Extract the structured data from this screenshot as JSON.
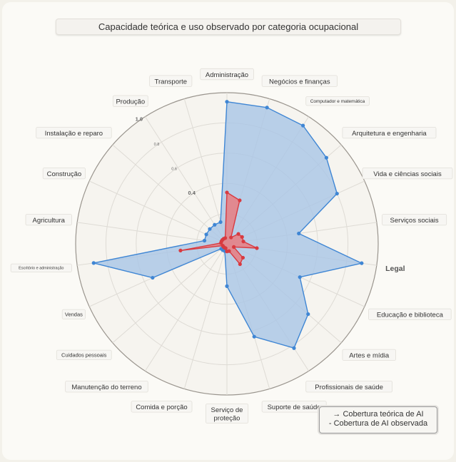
{
  "title": "Capacidade teórica e uso observado por categoria ocupacional",
  "legend": {
    "theoretical": "→ Cobertura teórica de AI",
    "observed": "- Cobertura de AI observada"
  },
  "colors": {
    "theoretical_fill": "#a9c6e6",
    "theoretical_line": "#3f86d4",
    "observed_fill": "#e77d80",
    "observed_line": "#d83a40",
    "grid": "#dedbd5",
    "outer_ring": "#9a958e"
  },
  "chart_data": {
    "type": "radar",
    "title": "Capacidade teórica e uso observado por categoria ocupacional",
    "categories": [
      "Administração",
      "Negócios e finanças",
      "Computador e matemática",
      "Arquitetura e engenharia",
      "Vida e ciências sociais",
      "Serviços sociais",
      "Legal",
      "Educação e biblioteca",
      "Artes e mídia",
      "Profissionais de saúde",
      "Suporte de saúde",
      "Serviço de proteção",
      "Comida e porção",
      "Manutenção do terreno",
      "Cuidados pessoais",
      "Vendas",
      "Escritório e administração",
      "Agricultura",
      "Construção",
      "Instalação e reparo",
      "Produção",
      "Transporte"
    ],
    "radial_ticks": [
      {
        "value": 0.4,
        "label": "0.4"
      },
      {
        "value": 0.6,
        "label": "0.6"
      },
      {
        "value": 0.8,
        "label": "0.8"
      },
      {
        "value": 1.0,
        "label": "1.0"
      }
    ],
    "range": [
      0,
      1.0
    ],
    "series": [
      {
        "name": "Cobertura teórica de AI",
        "values": [
          0.94,
          0.94,
          0.93,
          0.87,
          0.8,
          0.48,
          0.9,
          0.53,
          0.71,
          0.82,
          0.64,
          0.28,
          0.05,
          0.05,
          0.05,
          0.54,
          0.89,
          0.15,
          0.15,
          0.15,
          0.15,
          0.15
        ]
      },
      {
        "name": "Cobertura de AI observada",
        "values": [
          0.34,
          0.3,
          0.05,
          0.1,
          0.11,
          0.11,
          0.2,
          0.05,
          0.14,
          0.16,
          0.05,
          0.05,
          0.03,
          0.03,
          0.03,
          0.03,
          0.31,
          0.04,
          0.04,
          0.04,
          0.04,
          0.04
        ]
      }
    ],
    "legend_position": "bottom-right"
  }
}
